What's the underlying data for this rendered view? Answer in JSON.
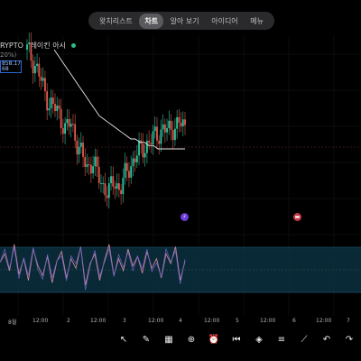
{
  "tabs": [
    {
      "label": "왓치리스트"
    },
    {
      "label": "차트"
    },
    {
      "label": "알아 보기"
    },
    {
      "label": "아이디어"
    },
    {
      "label": "메뉴"
    }
  ],
  "symbol": {
    "name": "RYPTO · 레이킨 아시",
    "change": "20%)",
    "price_line1": "858.17",
    "price_line2": "68"
  },
  "x_axis": [
    "8월",
    "12:00",
    "2",
    "12:00",
    "3",
    "12:00",
    "4",
    "12:00",
    "5",
    "12:00",
    "6",
    "12:00",
    "7"
  ],
  "toolbar": {
    "icons": [
      "cursor-icon",
      "drawing-icon",
      "grid-icon",
      "plus-icon",
      "alarm-icon",
      "replay-icon",
      "layers-icon",
      "settings-icon",
      "trend-icon",
      "undo-icon",
      "redo-icon"
    ]
  },
  "colors": {
    "up": "#2ec7a1",
    "down": "#e05a4e",
    "ma": "#e6e6e6",
    "rsi": "#c9839a",
    "band": "#0f3a4a",
    "accent": "#2f6bd6"
  },
  "chart_data": {
    "type": "line",
    "title": "",
    "xlabel": "",
    "ylabel": "",
    "series": [
      {
        "values": [
          100,
          96,
          92,
          85,
          80,
          78,
          75,
          70,
          72,
          66,
          60,
          55,
          58,
          52,
          48,
          46,
          50,
          47,
          52,
          56,
          60,
          62,
          64,
          66,
          68,
          70,
          69,
          71,
          72,
          70
        ]
      },
      {
        "values": [
          100,
          98,
          96,
          94,
          92,
          90,
          88,
          86,
          84,
          82,
          80,
          79,
          78,
          77,
          76,
          75,
          74,
          73,
          73,
          72,
          72,
          71,
          71,
          70,
          70,
          70,
          70,
          70,
          70,
          70
        ]
      }
    ],
    "rsi": [
      55,
      62,
      48,
      70,
      45,
      58,
      40,
      66,
      52,
      44,
      60,
      38,
      56,
      64,
      42,
      58,
      50,
      68,
      36,
      54,
      62,
      40,
      56,
      70,
      44,
      58,
      48,
      66,
      52,
      60,
      46,
      64,
      50,
      58,
      42,
      62,
      54,
      68,
      40,
      56
    ]
  }
}
